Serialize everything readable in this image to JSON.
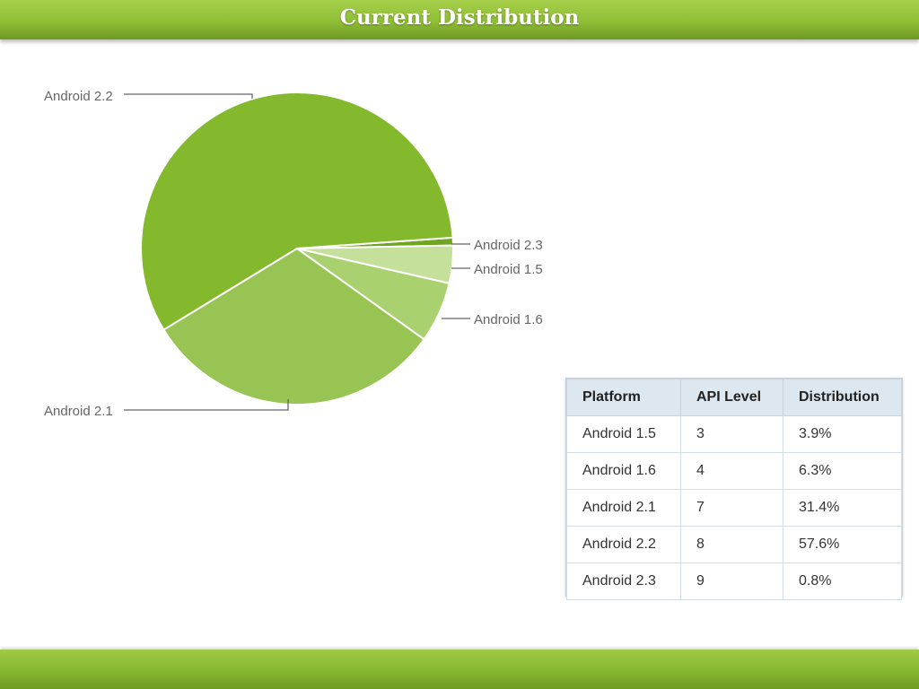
{
  "slide": {
    "title": "Current Distribution"
  },
  "colors": {
    "bar_green": "#8fbe36",
    "slice_2_2": "#84b92e",
    "slice_2_1": "#97c452",
    "slice_1_6": "#a9d170",
    "slice_1_5": "#c4e09a",
    "slice_2_3": "#6fa520",
    "leader_line": "#666666"
  },
  "chart_data": {
    "type": "pie",
    "labels": [
      "Android 2.3",
      "Android 1.5",
      "Android 1.6",
      "Android 2.1",
      "Android 2.2"
    ],
    "values": [
      0.8,
      3.9,
      6.3,
      31.4,
      57.6
    ],
    "unit": "%",
    "legend": "none"
  },
  "table": {
    "headers": [
      "Platform",
      "API Level",
      "Distribution"
    ],
    "rows": [
      [
        "Android 1.5",
        "3",
        "3.9%"
      ],
      [
        "Android 1.6",
        "4",
        "6.3%"
      ],
      [
        "Android 2.1",
        "7",
        "31.4%"
      ],
      [
        "Android 2.2",
        "8",
        "57.6%"
      ],
      [
        "Android 2.3",
        "9",
        "0.8%"
      ]
    ]
  }
}
